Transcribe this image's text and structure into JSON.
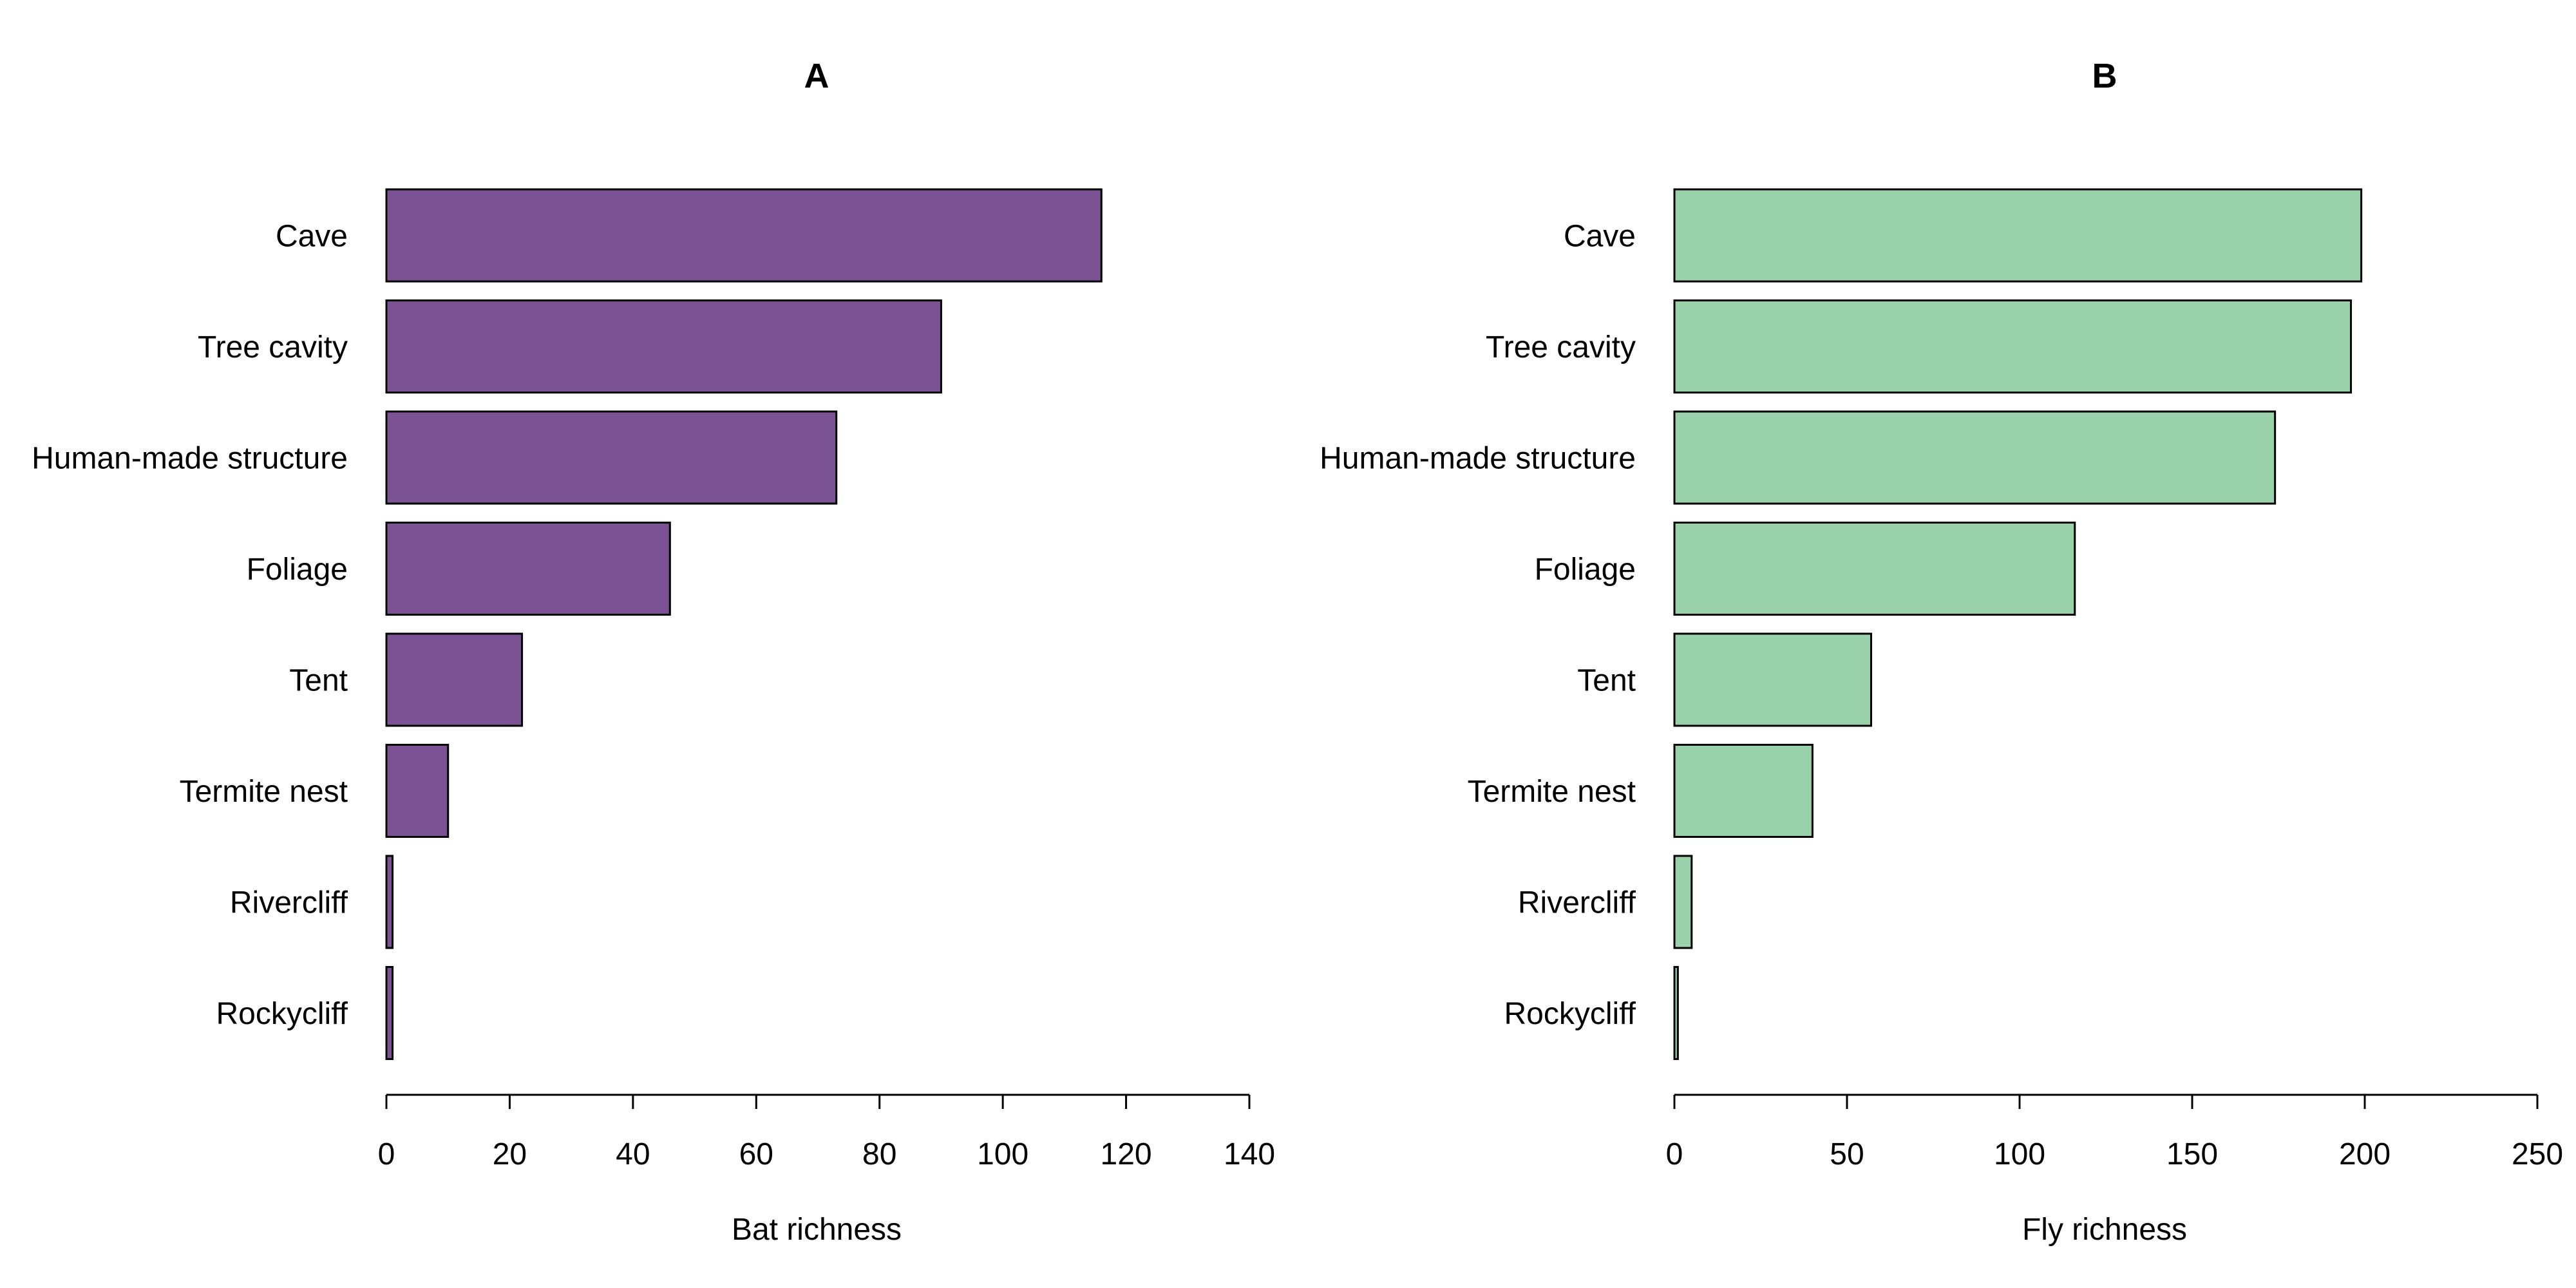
{
  "chart_data": [
    {
      "type": "bar",
      "orientation": "horizontal",
      "title": "A",
      "xlabel": "Bat richness",
      "ylabel": "",
      "categories": [
        "Cave",
        "Tree cavity",
        "Human-made structure",
        "Foliage",
        "Tent",
        "Termite nest",
        "Rivercliff",
        "Rockycliff"
      ],
      "values": [
        116,
        90,
        73,
        46,
        22,
        10,
        1,
        1
      ],
      "xlim": [
        0,
        140
      ],
      "ticks": [
        0,
        20,
        40,
        60,
        80,
        100,
        120,
        140
      ],
      "tick_labels": [
        "0",
        "20",
        "40",
        "60",
        "80",
        "100",
        "120",
        "140"
      ],
      "bar_color": "#7b5294",
      "grid": false,
      "legend": "none"
    },
    {
      "type": "bar",
      "orientation": "horizontal",
      "title": "B",
      "xlabel": "Fly richness",
      "ylabel": "",
      "categories": [
        "Cave",
        "Tree cavity",
        "Human-made structure",
        "Foliage",
        "Tent",
        "Termite nest",
        "Rivercliff",
        "Rockycliff"
      ],
      "values": [
        199,
        196,
        174,
        116,
        57,
        40,
        5,
        1
      ],
      "xlim": [
        0,
        250
      ],
      "ticks": [
        0,
        50,
        100,
        150,
        200,
        250
      ],
      "tick_labels": [
        "0",
        "50",
        "100",
        "150",
        "200",
        "250"
      ],
      "bar_color": "#98d1aa",
      "grid": false,
      "legend": "none"
    }
  ]
}
